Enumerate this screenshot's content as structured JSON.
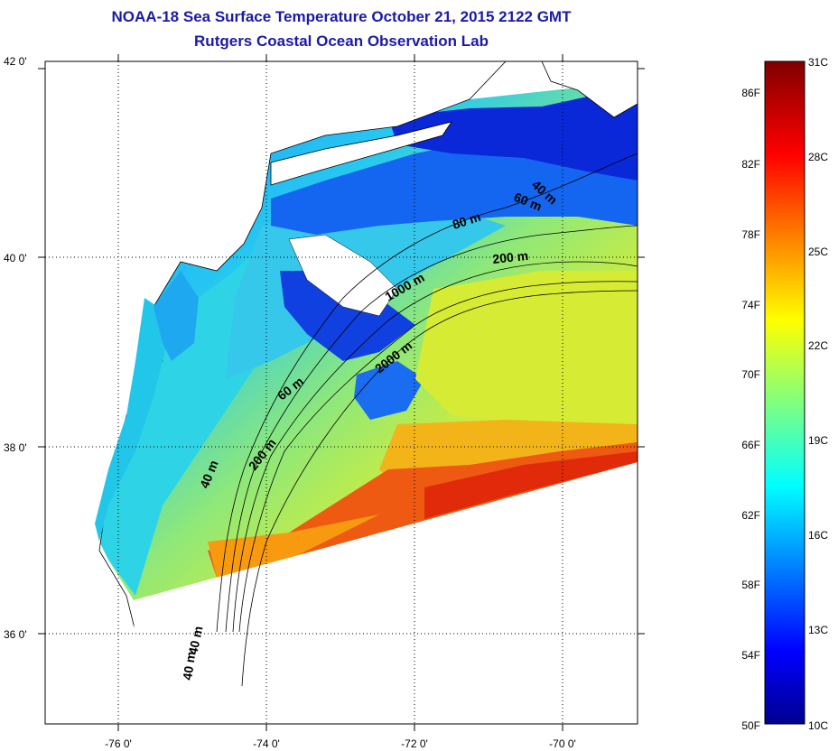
{
  "title_line1": "NOAA-18 Sea Surface Temperature October 21, 2015 2122 GMT",
  "title_line2": "Rutgers Coastal Ocean Observation Lab",
  "axes": {
    "lat_labels": [
      "42 0'",
      "40 0'",
      "38 0'",
      "36 0'"
    ],
    "lon_labels": [
      "-76 0'",
      "-74 0'",
      "-72 0'",
      "-70 0'"
    ]
  },
  "depth_labels": [
    "40 m",
    "60 m",
    "80 m",
    "200 m",
    "1000 m",
    "2000 m",
    "60 m",
    "200 m",
    "40 m",
    "40 m",
    "40 m"
  ],
  "colorbar": {
    "fahrenheit": [
      "86F",
      "82F",
      "78F",
      "74F",
      "70F",
      "66F",
      "62F",
      "58F",
      "54F",
      "50F"
    ],
    "celsius": [
      "31C",
      "28C",
      "25C",
      "22C",
      "19C",
      "16C",
      "13C",
      "10C"
    ],
    "colormap": "jet",
    "range_c": [
      10,
      31
    ]
  },
  "colors": {
    "title": "#1a1aa8",
    "cold": "#0000c8",
    "cool": "#00b4ff",
    "mild": "#00ffd0",
    "warm_yellow": "#e6f020",
    "warm_orange": "#ff8c00",
    "hot_red": "#e02000"
  }
}
